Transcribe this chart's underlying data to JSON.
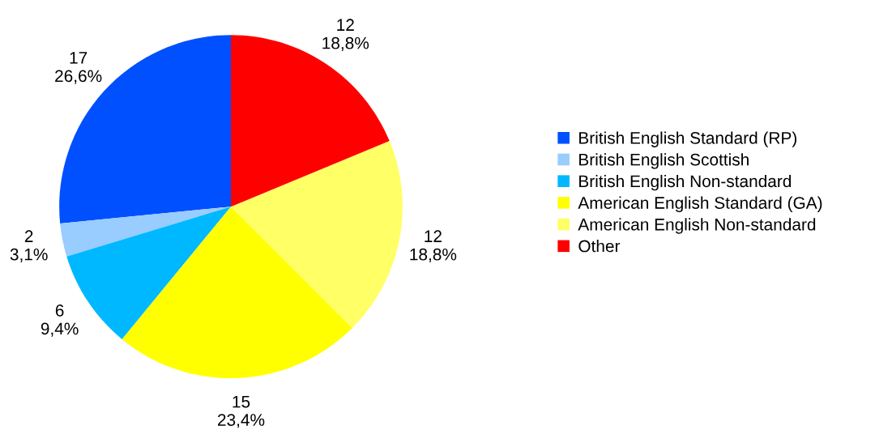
{
  "chart_data": {
    "type": "pie",
    "categories": [
      "British English Standard (RP)",
      "British English Scottish",
      "British English Non-standard",
      "American English Standard (GA)",
      "American English Non-standard",
      "Other"
    ],
    "values": [
      17,
      2,
      6,
      15,
      12,
      12
    ],
    "colors": [
      "#0050ff",
      "#99ccff",
      "#00b8ff",
      "#ffff00",
      "#ffff66",
      "#ff0000"
    ],
    "value_labels": [
      "17\n26,6%",
      "2\n3,1%",
      "6\n9,4%",
      "15\n23,4%",
      "12\n18,8%",
      "12\n18,8%"
    ],
    "legend": "right"
  }
}
